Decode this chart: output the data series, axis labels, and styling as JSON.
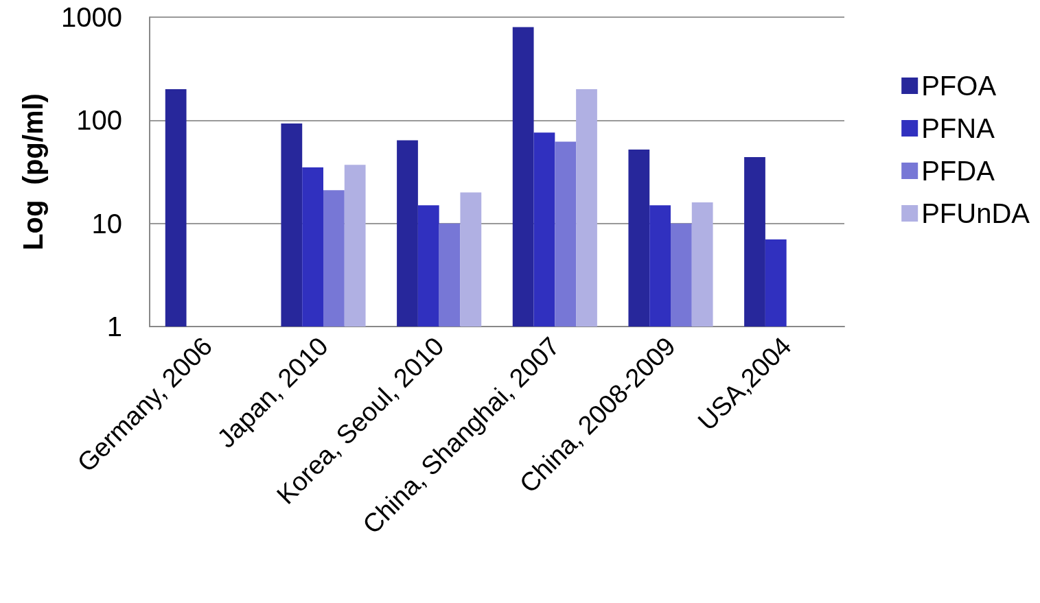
{
  "chart_data": {
    "type": "bar",
    "ylabel": "Log  (pg/ml)",
    "categories": [
      "Germany, 2006",
      "Japan, 2010",
      "Korea, Seoul, 2010",
      "China, Shanghai, 2007",
      "China, 2008-2009",
      "USA,2004"
    ],
    "series": [
      {
        "name": "PFOA",
        "color": "#27279b",
        "values": [
          200,
          93,
          64,
          800,
          52,
          44
        ]
      },
      {
        "name": "PFNA",
        "color": "#3030bf",
        "values": [
          null,
          35,
          15,
          76,
          15,
          7
        ]
      },
      {
        "name": "PFDA",
        "color": "#7777d6",
        "values": [
          null,
          21,
          10,
          62,
          10,
          null
        ]
      },
      {
        "name": "PFUnDA",
        "color": "#b0b0e3",
        "values": [
          null,
          37,
          20,
          200,
          16,
          null
        ]
      }
    ],
    "log": true,
    "ylim": [
      1,
      1000
    ],
    "yticks": [
      1,
      10,
      100,
      1000
    ],
    "grid": "y",
    "legend": "right"
  }
}
